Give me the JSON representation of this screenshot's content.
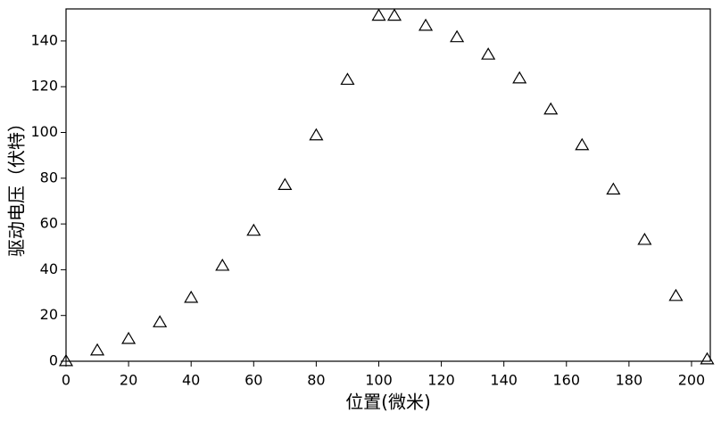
{
  "chart_data": {
    "type": "scatter",
    "x_label": "位置(微米)",
    "y_label": "驱动电压（伏特）",
    "series": [
      {
        "color": "#000000",
        "marker": "triangle",
        "x": [
          0,
          10,
          20,
          30,
          40,
          50,
          60,
          70,
          80,
          90,
          100,
          105,
          115,
          125,
          135,
          145,
          155,
          165,
          175,
          185,
          195,
          205
        ],
        "values": [
          0,
          4.7,
          9.7,
          17,
          27.7,
          41.7,
          57,
          77,
          98.7,
          123,
          151,
          151,
          146.6,
          141.6,
          134,
          123.6,
          110,
          94.4,
          75,
          53,
          28.5,
          0.8
        ]
      }
    ],
    "xlim": [
      0,
      206
    ],
    "ylim": [
      0,
      154
    ],
    "xticks": [
      0,
      20,
      40,
      60,
      80,
      100,
      120,
      140,
      160,
      180,
      200
    ],
    "yticks": [
      0,
      20,
      40,
      60,
      80,
      100,
      120,
      140
    ]
  }
}
